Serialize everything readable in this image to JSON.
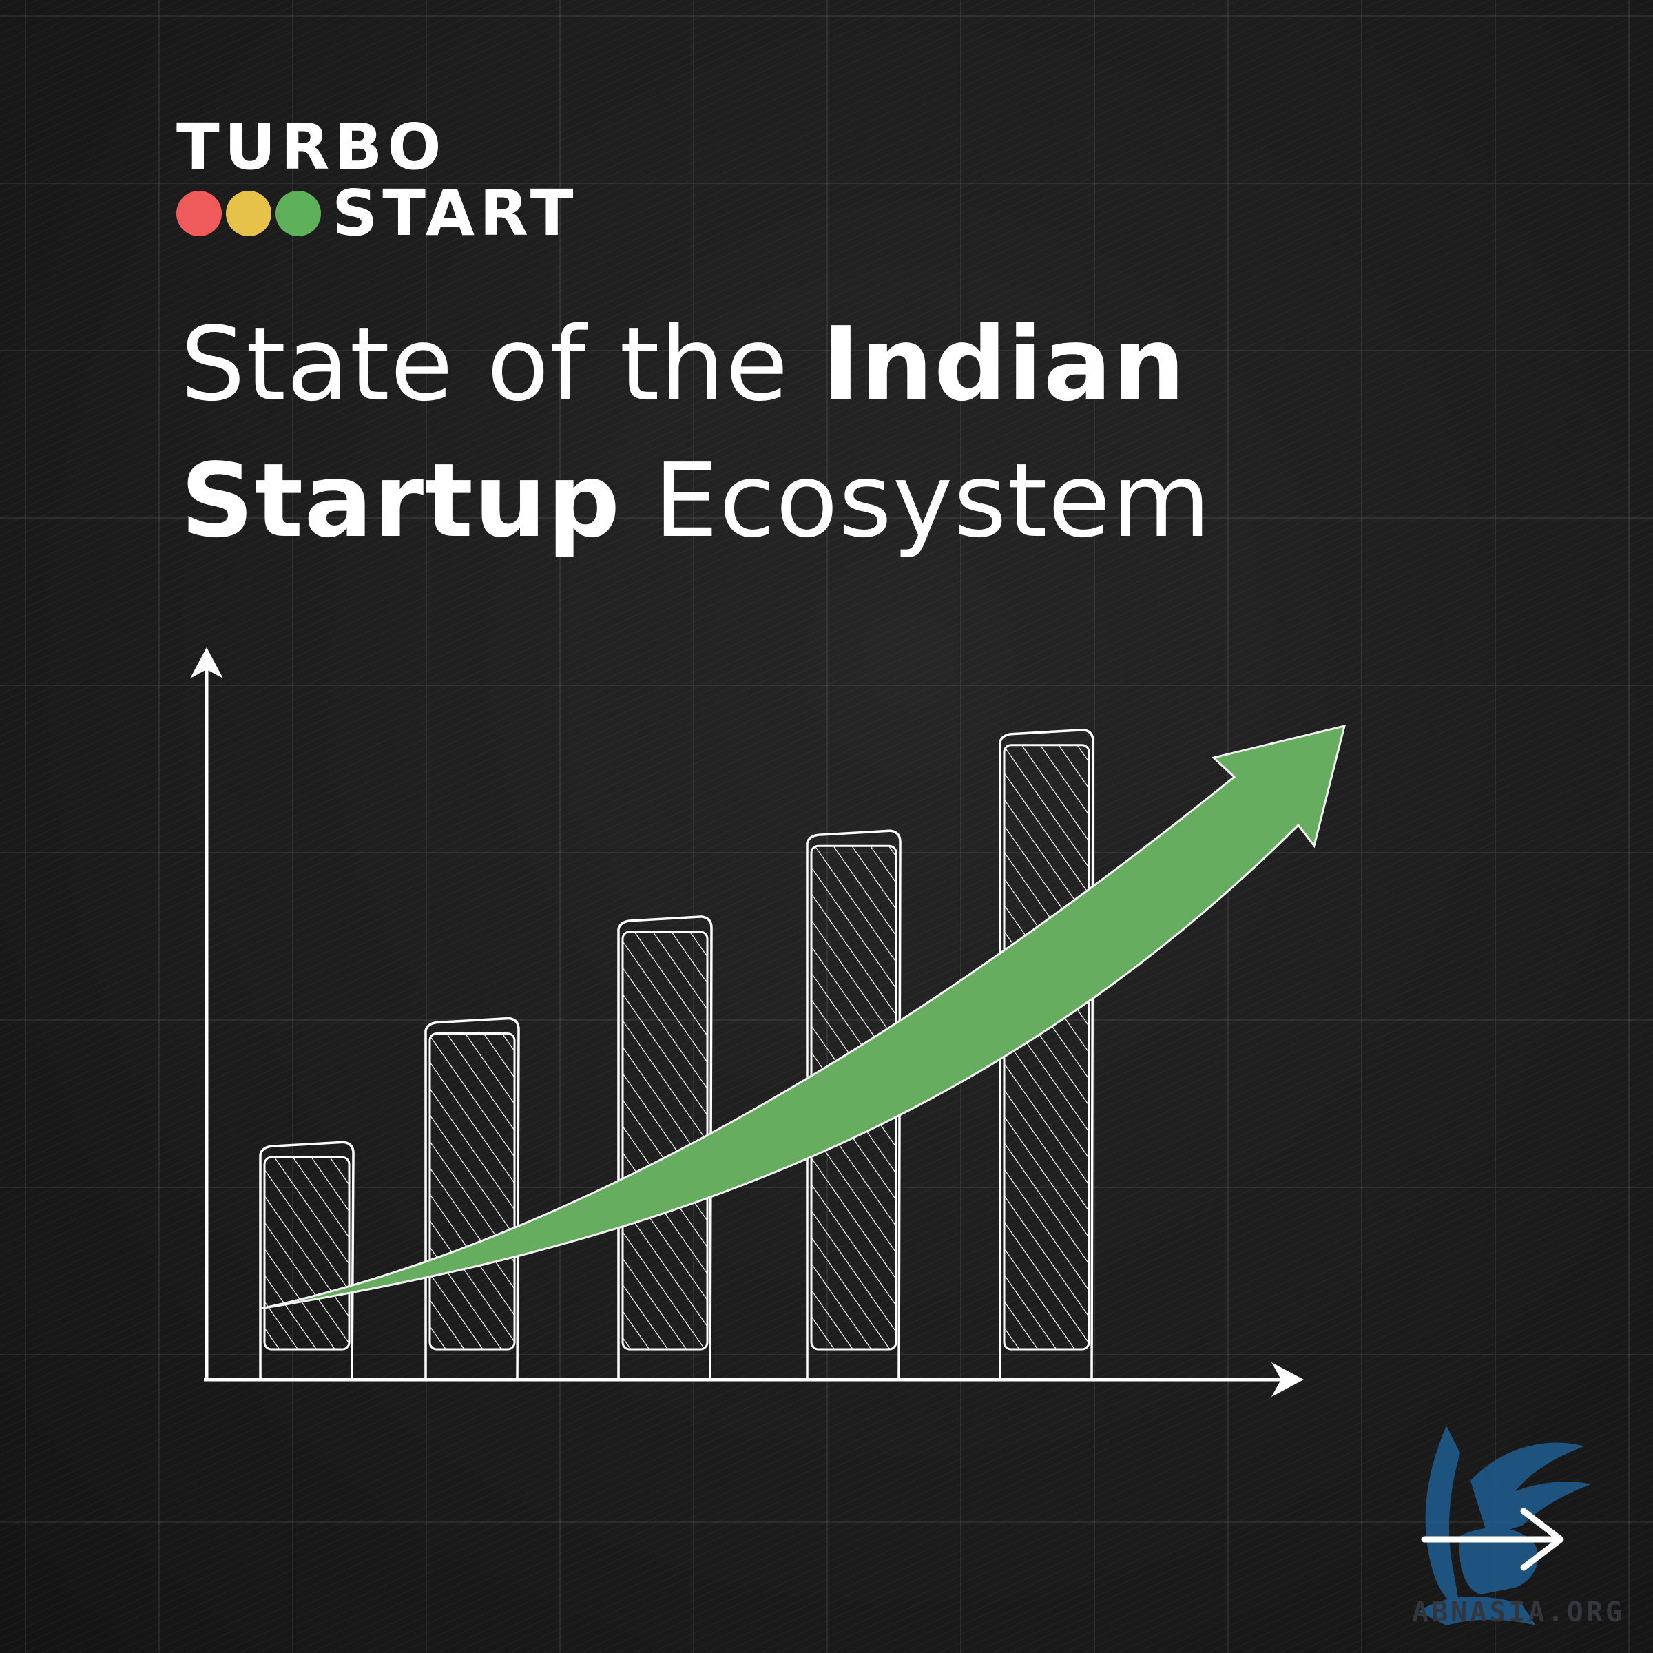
{
  "brand": {
    "line1": "TURBO",
    "line2": "START",
    "dot_colors": [
      "#ef5b5b",
      "#e6c24a",
      "#5fb05a"
    ]
  },
  "title": {
    "part1": "State of the ",
    "part2": "Indian",
    "part3": "Startup",
    "part4": " Ecosystem"
  },
  "chart_data": {
    "type": "bar",
    "style": "hand-drawn hatched bars with upward trend arrow",
    "categories": [
      "",
      "",
      "",
      "",
      ""
    ],
    "values": [
      36,
      55,
      71,
      84,
      100
    ],
    "trend_arrow_color": "#66ad60",
    "axis_color": "#ffffff"
  },
  "navigation": {
    "next_icon": "arrow-right-icon"
  },
  "watermark": {
    "text": "ABNASIA.ORG",
    "color": "#1e5a8a"
  }
}
